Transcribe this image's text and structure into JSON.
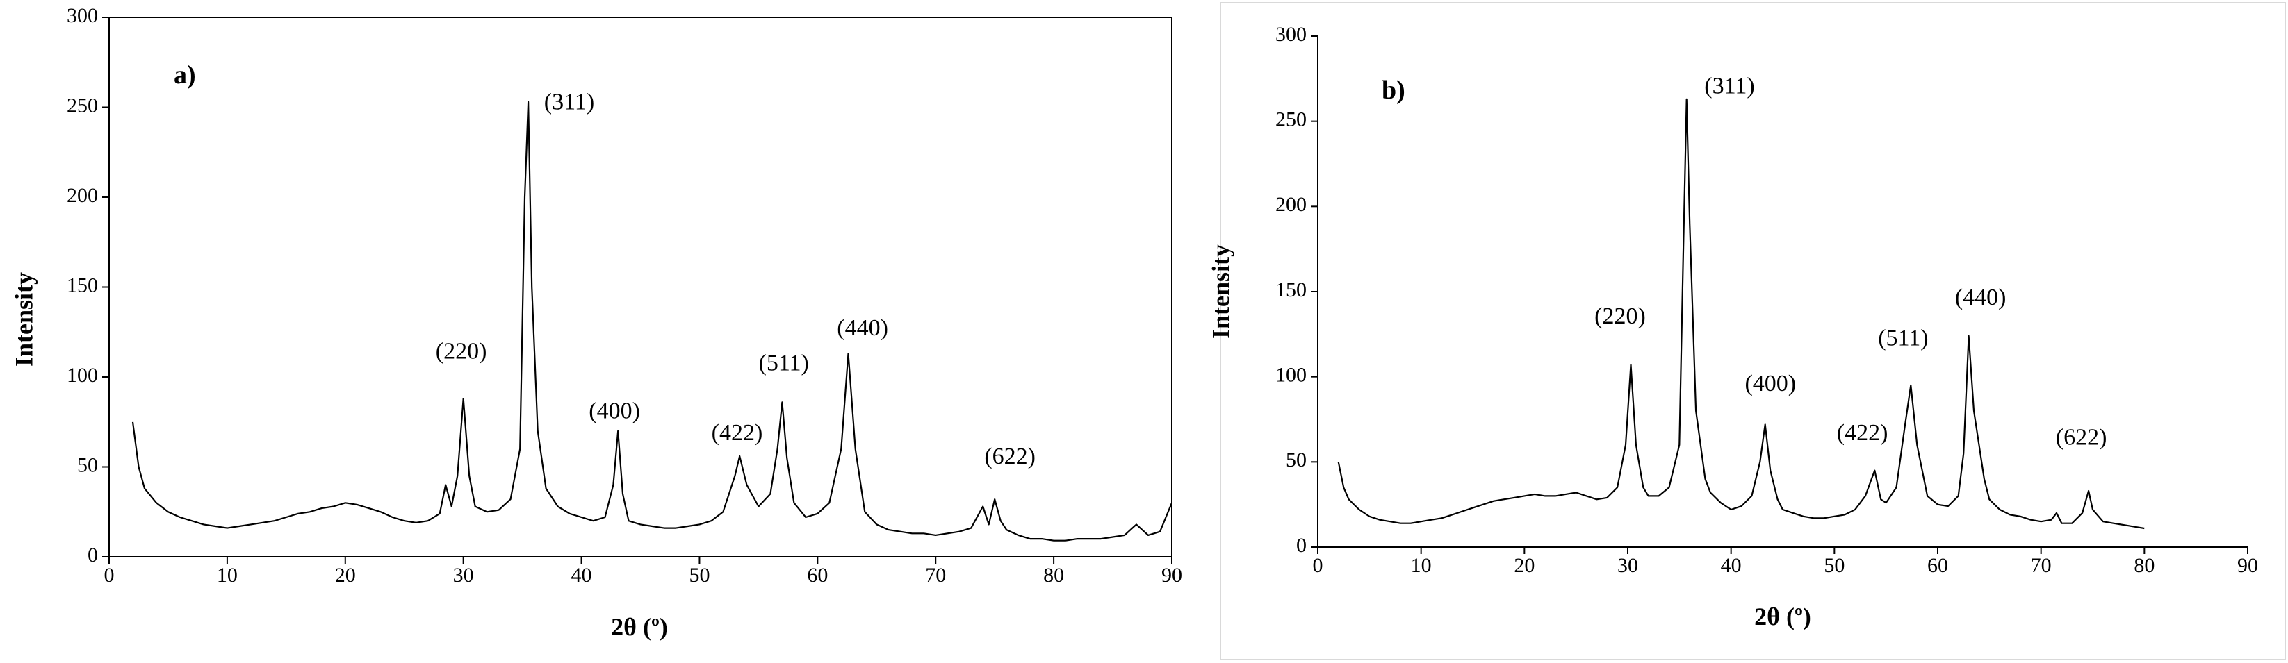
{
  "chart_data": [
    {
      "type": "line",
      "title": "a)",
      "x_label": "2θ (º)",
      "y_label": "Intensity",
      "x": [
        2,
        2.5,
        3,
        4,
        5,
        6,
        7,
        8,
        9,
        10,
        11,
        12,
        13,
        14,
        15,
        16,
        17,
        18,
        19,
        20,
        21,
        22,
        23,
        24,
        25,
        26,
        27,
        28,
        28.5,
        29,
        29.5,
        30,
        30.5,
        31,
        32,
        33,
        34,
        34.8,
        35.2,
        35.5,
        35.8,
        36.3,
        37,
        38,
        39,
        40,
        41,
        42,
        42.7,
        43.1,
        43.5,
        44,
        45,
        46,
        47,
        48,
        49,
        50,
        51,
        52,
        53,
        53.4,
        54,
        55,
        56,
        56.6,
        57,
        57.4,
        58,
        59,
        60,
        61,
        62,
        62.6,
        63.2,
        64,
        65,
        66,
        67,
        68,
        69,
        70,
        71,
        72,
        73,
        74,
        74.5,
        75,
        75.5,
        76,
        77,
        78,
        79,
        80,
        81,
        82,
        83,
        84,
        85,
        86,
        87,
        88,
        89,
        90
      ],
      "series": [
        {
          "color": "#000000",
          "values": [
            75,
            50,
            38,
            30,
            25,
            22,
            20,
            18,
            17,
            16,
            17,
            18,
            19,
            20,
            22,
            24,
            25,
            27,
            28,
            30,
            29,
            27,
            25,
            22,
            20,
            19,
            20,
            24,
            40,
            28,
            45,
            88,
            45,
            28,
            25,
            26,
            32,
            60,
            200,
            253,
            150,
            70,
            38,
            28,
            24,
            22,
            20,
            22,
            40,
            70,
            35,
            20,
            18,
            17,
            16,
            16,
            17,
            18,
            20,
            25,
            45,
            56,
            40,
            28,
            35,
            60,
            86,
            55,
            30,
            22,
            24,
            30,
            60,
            113,
            60,
            25,
            18,
            15,
            14,
            13,
            13,
            12,
            13,
            14,
            16,
            28,
            18,
            32,
            20,
            15,
            12,
            10,
            10,
            9,
            9,
            10,
            10,
            10,
            11,
            12,
            18,
            12,
            14,
            30
          ]
        }
      ],
      "annotations": [
        "(220)",
        "(311)",
        "(400)",
        "(422)",
        "(511)",
        "(440)",
        "(622)"
      ],
      "xlim": [
        0,
        90
      ],
      "xticks": [
        0,
        10,
        20,
        30,
        40,
        50,
        60,
        70,
        80,
        90
      ],
      "ylim": [
        0,
        300
      ],
      "yticks": [
        0,
        50,
        100,
        150,
        200,
        250,
        300
      ],
      "frame": true
    },
    {
      "type": "line",
      "title": "b)",
      "x_label": "2θ (º)",
      "y_label": "Intensity",
      "x": [
        2,
        2.5,
        3,
        4,
        5,
        6,
        7,
        8,
        9,
        10,
        11,
        12,
        13,
        14,
        15,
        16,
        17,
        18,
        19,
        20,
        21,
        22,
        23,
        24,
        25,
        26,
        27,
        28,
        29,
        29.8,
        30.3,
        30.8,
        31.5,
        32,
        33,
        34,
        35,
        35.4,
        35.7,
        36,
        36.6,
        37.5,
        38,
        39,
        40,
        41,
        42,
        42.8,
        43.3,
        43.8,
        44.5,
        45,
        46,
        47,
        48,
        49,
        50,
        51,
        52,
        53,
        53.9,
        54.5,
        55,
        56,
        56.8,
        57.4,
        58,
        59,
        60,
        61,
        62,
        62.5,
        63,
        63.5,
        64.5,
        65,
        66,
        67,
        68,
        69,
        70,
        71,
        71.5,
        72,
        73,
        74,
        74.6,
        75,
        76,
        77,
        78,
        79,
        80
      ],
      "series": [
        {
          "color": "#000000",
          "values": [
            50,
            35,
            28,
            22,
            18,
            16,
            15,
            14,
            14,
            15,
            16,
            17,
            19,
            21,
            23,
            25,
            27,
            28,
            29,
            30,
            31,
            30,
            30,
            31,
            32,
            30,
            28,
            29,
            35,
            60,
            107,
            60,
            35,
            30,
            30,
            35,
            60,
            180,
            263,
            190,
            80,
            40,
            32,
            26,
            22,
            24,
            30,
            50,
            72,
            45,
            28,
            22,
            20,
            18,
            17,
            17,
            18,
            19,
            22,
            30,
            45,
            28,
            26,
            35,
            70,
            95,
            60,
            30,
            25,
            24,
            30,
            55,
            124,
            80,
            40,
            28,
            22,
            19,
            18,
            16,
            15,
            16,
            20,
            14,
            14,
            20,
            33,
            22,
            15,
            14,
            13,
            12,
            11
          ]
        }
      ],
      "annotations": [
        "(220)",
        "(311)",
        "(400)",
        "(422)",
        "(511)",
        "(440)",
        "(622)"
      ],
      "xlim": [
        0,
        90
      ],
      "xticks": [
        0,
        10,
        20,
        30,
        40,
        50,
        60,
        70,
        80,
        90
      ],
      "ylim": [
        0,
        300
      ],
      "yticks": [
        0,
        50,
        100,
        150,
        200,
        250,
        300
      ],
      "frame": false
    }
  ]
}
